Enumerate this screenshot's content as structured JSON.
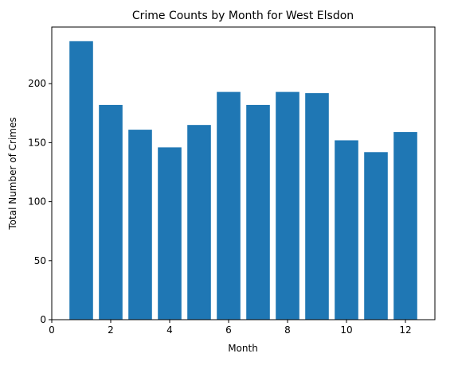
{
  "chart_data": {
    "type": "bar",
    "title": "Crime Counts by Month for West Elsdon",
    "xlabel": "Month",
    "ylabel": "Total Number of Crimes",
    "x": [
      1,
      2,
      3,
      4,
      5,
      6,
      7,
      8,
      9,
      10,
      11,
      12
    ],
    "values": [
      236,
      182,
      161,
      146,
      165,
      193,
      182,
      193,
      192,
      152,
      142,
      159
    ],
    "xlim": [
      0,
      13
    ],
    "ylim": [
      0,
      248
    ],
    "xticks": [
      0,
      2,
      4,
      6,
      8,
      10,
      12
    ],
    "yticks": [
      0,
      50,
      100,
      150,
      200
    ],
    "bar_width": 0.8,
    "grid": false,
    "legend": "none",
    "bar_color": "#1f77b4"
  }
}
